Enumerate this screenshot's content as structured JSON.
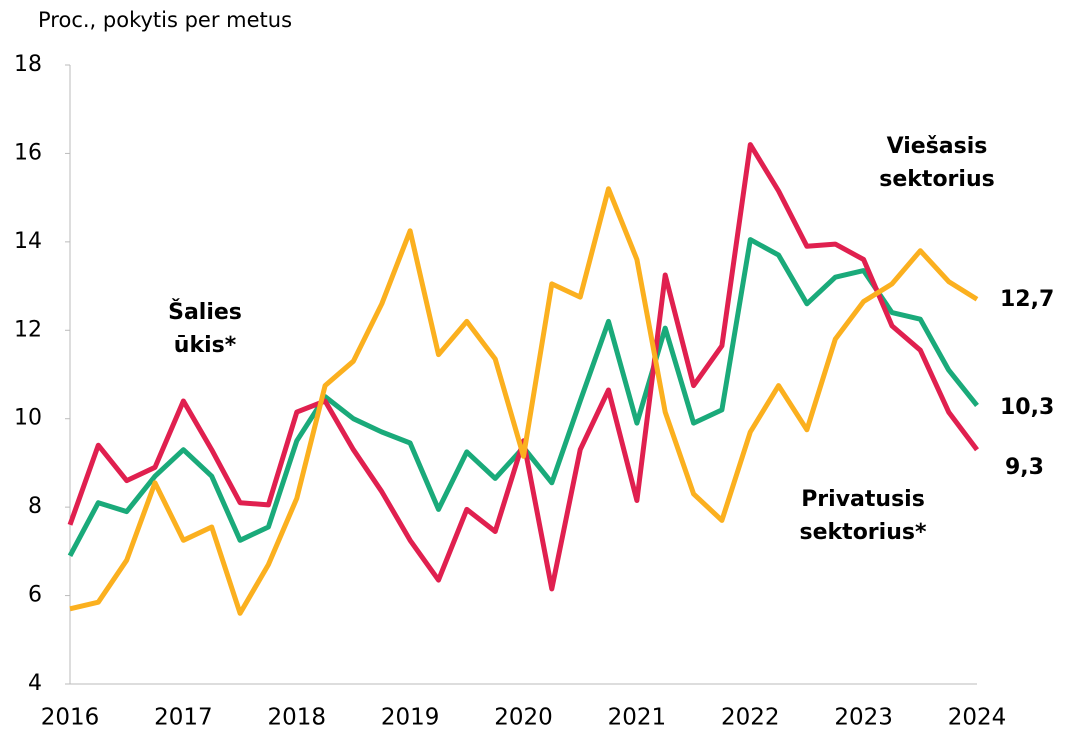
{
  "chart_data": {
    "type": "line",
    "y_label": "Proc., pokytis per metus",
    "categories": [
      "2016",
      null,
      null,
      null,
      "2017",
      null,
      null,
      null,
      "2018",
      null,
      null,
      null,
      "2019",
      null,
      null,
      null,
      "2020",
      null,
      null,
      null,
      "2021",
      null,
      null,
      null,
      "2022",
      null,
      null,
      null,
      "2023",
      null,
      null,
      null,
      "2024"
    ],
    "ylim": [
      4,
      18
    ],
    "yticks": [
      4,
      6,
      8,
      10,
      12,
      14,
      16,
      18
    ],
    "grid": false,
    "series": [
      {
        "name": "Šalies ūkis*",
        "color": "#1aaa7a",
        "end_label": "10,3",
        "values": [
          6.9,
          8.1,
          7.9,
          8.7,
          9.3,
          8.7,
          7.25,
          7.55,
          9.5,
          10.5,
          10.0,
          9.7,
          9.45,
          7.95,
          9.25,
          8.65,
          9.35,
          8.55,
          10.4,
          12.2,
          9.9,
          12.05,
          9.9,
          10.2,
          14.05,
          13.7,
          12.6,
          13.2,
          13.35,
          12.4,
          12.25,
          11.1,
          10.3
        ]
      },
      {
        "name": "Privatusis sektorius*",
        "color": "#e0204f",
        "end_label": "9,3",
        "values": [
          7.6,
          9.4,
          8.6,
          8.9,
          10.4,
          9.3,
          8.1,
          8.05,
          10.15,
          10.4,
          9.3,
          8.35,
          7.25,
          6.35,
          7.95,
          7.45,
          9.5,
          6.15,
          9.3,
          10.65,
          8.15,
          13.25,
          10.75,
          11.65,
          16.2,
          15.15,
          13.9,
          13.95,
          13.6,
          12.1,
          11.55,
          10.15,
          9.3
        ]
      },
      {
        "name": "Viešasis sektorius",
        "color": "#fbb01f",
        "end_label": "12,7",
        "values": [
          5.7,
          5.85,
          6.8,
          8.55,
          7.25,
          7.55,
          5.6,
          6.7,
          8.2,
          10.75,
          11.3,
          12.6,
          14.25,
          11.45,
          12.2,
          11.35,
          9.15,
          13.05,
          12.75,
          15.2,
          13.6,
          10.15,
          8.3,
          7.7,
          9.7,
          10.75,
          9.75,
          11.8,
          12.65,
          13.05,
          13.8,
          13.1,
          12.7
        ]
      }
    ]
  }
}
